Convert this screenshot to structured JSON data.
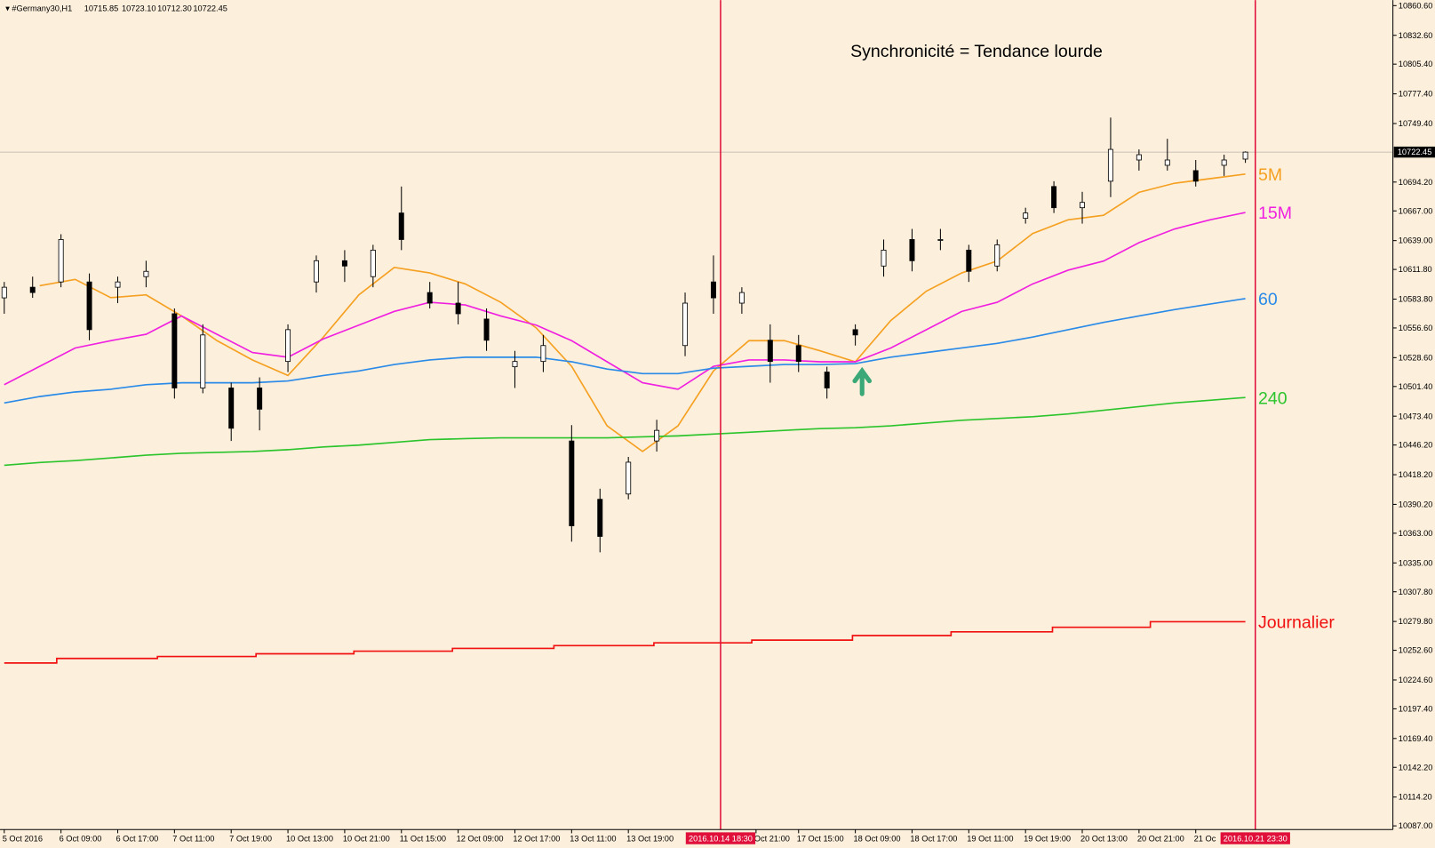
{
  "chart_data": {
    "type": "candlestick",
    "symbol": "#Germany30,H1",
    "last_bar": {
      "values": [
        10715.85,
        10723.1,
        10712.3,
        10722.45
      ],
      "value_labels": [
        "10715.85",
        "10723.10",
        "10712.30",
        "10722.45"
      ]
    },
    "title": "Synchronicité = Tendance lourde",
    "xlim": [
      -0.6,
      195.8
    ],
    "ylim": [
      10083.5,
      10865.8
    ],
    "yticks": [
      {
        "value": 10860.6,
        "label": "10860.60"
      },
      {
        "value": 10832.6,
        "label": "10832.60"
      },
      {
        "value": 10805.4,
        "label": "10805.40"
      },
      {
        "value": 10777.4,
        "label": "10777.40"
      },
      {
        "value": 10749.4,
        "label": "10749.40"
      },
      {
        "value": 10694.2,
        "label": "10694.20"
      },
      {
        "value": 10667.0,
        "label": "10667.00"
      },
      {
        "value": 10639.0,
        "label": "10639.00"
      },
      {
        "value": 10611.8,
        "label": "10611.80"
      },
      {
        "value": 10583.8,
        "label": "10583.80"
      },
      {
        "value": 10556.6,
        "label": "10556.60"
      },
      {
        "value": 10528.6,
        "label": "10528.60"
      },
      {
        "value": 10501.4,
        "label": "10501.40"
      },
      {
        "value": 10473.4,
        "label": "10473.40"
      },
      {
        "value": 10446.2,
        "label": "10446.20"
      },
      {
        "value": 10418.2,
        "label": "10418.20"
      },
      {
        "value": 10390.2,
        "label": "10390.20"
      },
      {
        "value": 10363.0,
        "label": "10363.00"
      },
      {
        "value": 10335.0,
        "label": "10335.00"
      },
      {
        "value": 10307.8,
        "label": "10307.80"
      },
      {
        "value": 10279.8,
        "label": "10279.80"
      },
      {
        "value": 10252.6,
        "label": "10252.60"
      },
      {
        "value": 10224.6,
        "label": "10224.60"
      },
      {
        "value": 10197.4,
        "label": "10197.40"
      },
      {
        "value": 10169.4,
        "label": "10169.40"
      },
      {
        "value": 10142.2,
        "label": "10142.20"
      },
      {
        "value": 10114.2,
        "label": "10114.20"
      },
      {
        "value": 10087.0,
        "label": "10087.00"
      }
    ],
    "xticks": [
      {
        "value": 0,
        "label": "5 Oct 2016"
      },
      {
        "value": 8,
        "label": "6 Oct 09:00"
      },
      {
        "value": 16,
        "label": "6 Oct 17:00"
      },
      {
        "value": 24,
        "label": "7 Oct 11:00"
      },
      {
        "value": 32,
        "label": "7 Oct 19:00"
      },
      {
        "value": 40,
        "label": "10 Oct 13:00"
      },
      {
        "value": 48,
        "label": "10 Oct 21:00"
      },
      {
        "value": 56,
        "label": "11 Oct 15:00"
      },
      {
        "value": 64,
        "label": "12 Oct 09:00"
      },
      {
        "value": 72,
        "label": "12 Oct 17:00"
      },
      {
        "value": 80,
        "label": "13 Oct 11:00"
      },
      {
        "value": 88,
        "label": "13 Oct 19:00"
      },
      {
        "value": 106,
        "label": "Oct 21:00"
      },
      {
        "value": 112,
        "label": "17 Oct 15:00"
      },
      {
        "value": 120,
        "label": "18 Oct 09:00"
      },
      {
        "value": 128,
        "label": "18 Oct 17:00"
      },
      {
        "value": 136,
        "label": "19 Oct 11:00"
      },
      {
        "value": 144,
        "label": "19 Oct 19:00"
      },
      {
        "value": 152,
        "label": "20 Oct 13:00"
      },
      {
        "value": 160,
        "label": "20 Oct 21:00"
      },
      {
        "value": 168,
        "label": "21 Oc"
      }
    ],
    "current_price": {
      "value": 10722.45,
      "label": "10722.45"
    },
    "markers": [
      {
        "x": 101,
        "label": "2016.10.14 18:30"
      },
      {
        "x": 176.4,
        "label": "2016.10.21 23:30"
      }
    ],
    "candles": {
      "x": [
        0,
        4,
        8,
        12,
        16,
        20,
        24,
        28,
        32,
        36,
        40,
        44,
        48,
        52,
        56,
        60,
        64,
        68,
        72,
        76,
        80,
        84,
        88,
        92,
        96,
        100,
        104,
        108,
        112,
        116,
        120,
        124,
        128,
        132,
        136,
        140,
        144,
        148,
        152,
        156,
        160,
        164,
        168,
        172,
        175
      ],
      "open": [
        10585,
        10595,
        10600,
        10600,
        10595,
        10605,
        10570,
        10500,
        10500,
        10500,
        10525,
        10600,
        10620,
        10605,
        10665,
        10590,
        10580,
        10565,
        10520,
        10525,
        10450,
        10395,
        10400,
        10450,
        10540,
        10600,
        10580,
        10545,
        10540,
        10515,
        10555,
        10615,
        10640,
        10640,
        10630,
        10615,
        10660,
        10690,
        10670,
        10695,
        10715,
        10710,
        10705,
        10710,
        10715.85
      ],
      "high": [
        10600,
        10605,
        10645,
        10608,
        10605,
        10620,
        10575,
        10560,
        10505,
        10510,
        10560,
        10625,
        10630,
        10635,
        10690,
        10600,
        10600,
        10575,
        10535,
        10550,
        10465,
        10405,
        10435,
        10470,
        10590,
        10625,
        10595,
        10560,
        10550,
        10520,
        10560,
        10640,
        10650,
        10650,
        10635,
        10640,
        10670,
        10695,
        10685,
        10755,
        10725,
        10735,
        10715,
        10720,
        10723.1
      ],
      "low": [
        10570,
        10585,
        10595,
        10545,
        10580,
        10595,
        10490,
        10495,
        10450,
        10460,
        10515,
        10590,
        10600,
        10595,
        10630,
        10575,
        10560,
        10535,
        10500,
        10515,
        10355,
        10345,
        10395,
        10440,
        10530,
        10570,
        10570,
        10505,
        10515,
        10490,
        10540,
        10605,
        10610,
        10630,
        10600,
        10610,
        10655,
        10665,
        10655,
        10680,
        10705,
        10705,
        10690,
        10700,
        10712.3
      ],
      "close": [
        10595,
        10590,
        10640,
        10555,
        10600,
        10610,
        10500,
        10550,
        10462,
        10480,
        10555,
        10620,
        10615,
        10630,
        10640,
        10580,
        10570,
        10545,
        10525,
        10540,
        10370,
        10360,
        10430,
        10460,
        10580,
        10585,
        10590,
        10525,
        10525,
        10500,
        10550,
        10630,
        10620,
        10640,
        10610,
        10635,
        10665,
        10670,
        10675,
        10725,
        10720,
        10715,
        10695,
        10715,
        10722.45
      ]
    },
    "x": [
      0,
      5,
      10,
      15,
      20,
      25,
      30,
      35,
      40,
      45,
      50,
      55,
      60,
      65,
      70,
      75,
      80,
      85,
      90,
      95,
      100,
      105,
      110,
      115,
      120,
      125,
      130,
      135,
      140,
      145,
      150,
      155,
      160,
      165,
      170,
      175
    ],
    "series": [
      {
        "name": "5M",
        "color": "#f5a020",
        "values": [
          null,
          10596.4,
          10602.4,
          10585.2,
          10587.8,
          10567.9,
          10544.6,
          10526.4,
          10511.8,
          10548.0,
          10587.8,
          10613.7,
          10608.5,
          10598.1,
          10580.8,
          10556.7,
          10520.4,
          10464.3,
          10440.1,
          10464.3,
          10516.1,
          10544.6,
          10544.6,
          10535.1,
          10524.7,
          10563.6,
          10591.2,
          10608.5,
          10619.7,
          10645.6,
          10658.6,
          10662.9,
          10684.5,
          10693.1,
          10697.4,
          10701.7
        ]
      },
      {
        "name": "15M",
        "color": "#f020e0",
        "values": [
          10503.1,
          10520.4,
          10537.7,
          10544.6,
          10550.6,
          10567.9,
          10550.6,
          10533.4,
          10529.0,
          10546.3,
          10559.3,
          10572.2,
          10580.8,
          10578.3,
          10567.9,
          10559.3,
          10544.6,
          10524.7,
          10504.9,
          10498.8,
          10520.4,
          10526.4,
          10526.4,
          10524.7,
          10524.7,
          10537.7,
          10554.9,
          10572.2,
          10580.8,
          10598.1,
          10611.1,
          10619.7,
          10637.0,
          10649.9,
          10658.6,
          10665.5
        ]
      },
      {
        "name": "60",
        "color": "#2a8ae8",
        "values": [
          10485.9,
          10491.9,
          10496.2,
          10498.8,
          10503.1,
          10504.9,
          10504.9,
          10504.9,
          10506.6,
          10511.8,
          10516.1,
          10522.1,
          10526.4,
          10529.0,
          10529.0,
          10529.0,
          10524.7,
          10517.8,
          10513.5,
          10513.5,
          10518.7,
          10520.4,
          10522.1,
          10522.1,
          10523.0,
          10529.0,
          10533.4,
          10537.7,
          10542.0,
          10548.0,
          10554.9,
          10561.8,
          10567.9,
          10573.9,
          10579.1,
          10584.3
        ]
      },
      {
        "name": "240",
        "color": "#2cc42c",
        "values": [
          10427.1,
          10429.7,
          10431.5,
          10434.0,
          10436.6,
          10438.4,
          10439.2,
          10440.1,
          10441.8,
          10444.4,
          10446.1,
          10448.7,
          10451.3,
          10452.2,
          10453.0,
          10453.0,
          10453.0,
          10453.0,
          10453.9,
          10454.8,
          10456.5,
          10458.2,
          10460.0,
          10461.7,
          10462.5,
          10464.3,
          10466.9,
          10469.5,
          10471.2,
          10472.9,
          10475.5,
          10479.0,
          10482.4,
          10485.9,
          10488.4,
          10491.0
        ]
      },
      {
        "name": "Journalier",
        "color": "#f01010",
        "step": "after",
        "x": [
          0,
          7.4,
          21.6,
          35.5,
          49.3,
          63.2,
          77.5,
          91.6,
          105.4,
          119.6,
          133.5,
          147.8,
          161.6,
          175
        ],
        "values": [
          10240.6,
          10244.9,
          10246.7,
          10249.3,
          10251.8,
          10254.4,
          10257.0,
          10259.6,
          10262.2,
          10266.5,
          10270.0,
          10274.3,
          10279.5,
          10279.5
        ]
      }
    ]
  }
}
